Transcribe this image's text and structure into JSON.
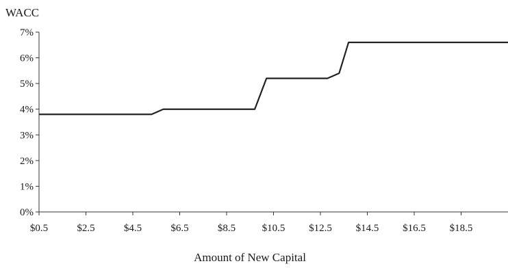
{
  "chart_data": {
    "type": "line",
    "title": "",
    "ylabel": "WACC",
    "xlabel": "Amount of New Capital",
    "xlim": [
      0.5,
      20.5
    ],
    "ylim": [
      0,
      7
    ],
    "grid": false,
    "y_ticks": [
      {
        "value": 0,
        "label": "0%"
      },
      {
        "value": 1,
        "label": "1%"
      },
      {
        "value": 2,
        "label": "2%"
      },
      {
        "value": 3,
        "label": "3%"
      },
      {
        "value": 4,
        "label": "4%"
      },
      {
        "value": 5,
        "label": "5%"
      },
      {
        "value": 6,
        "label": "6%"
      },
      {
        "value": 7,
        "label": "7%"
      }
    ],
    "x_ticks": [
      {
        "value": 0.5,
        "label": "$0.5"
      },
      {
        "value": 2.5,
        "label": "$2.5"
      },
      {
        "value": 4.5,
        "label": "$4.5"
      },
      {
        "value": 6.5,
        "label": "$6.5"
      },
      {
        "value": 8.5,
        "label": "$8.5"
      },
      {
        "value": 10.5,
        "label": "$10.5"
      },
      {
        "value": 12.5,
        "label": "$12.5"
      },
      {
        "value": 14.5,
        "label": "$14.5"
      },
      {
        "value": 16.5,
        "label": "$16.5"
      },
      {
        "value": 18.5,
        "label": "$18.5"
      }
    ],
    "series": [
      {
        "color": "#222222",
        "points": [
          [
            0.5,
            3.8
          ],
          [
            5.3,
            3.8
          ],
          [
            5.8,
            4.0
          ],
          [
            9.7,
            4.0
          ],
          [
            10.2,
            5.2
          ],
          [
            12.8,
            5.2
          ],
          [
            13.3,
            5.4
          ],
          [
            13.7,
            6.6
          ],
          [
            20.5,
            6.6
          ]
        ]
      }
    ]
  }
}
